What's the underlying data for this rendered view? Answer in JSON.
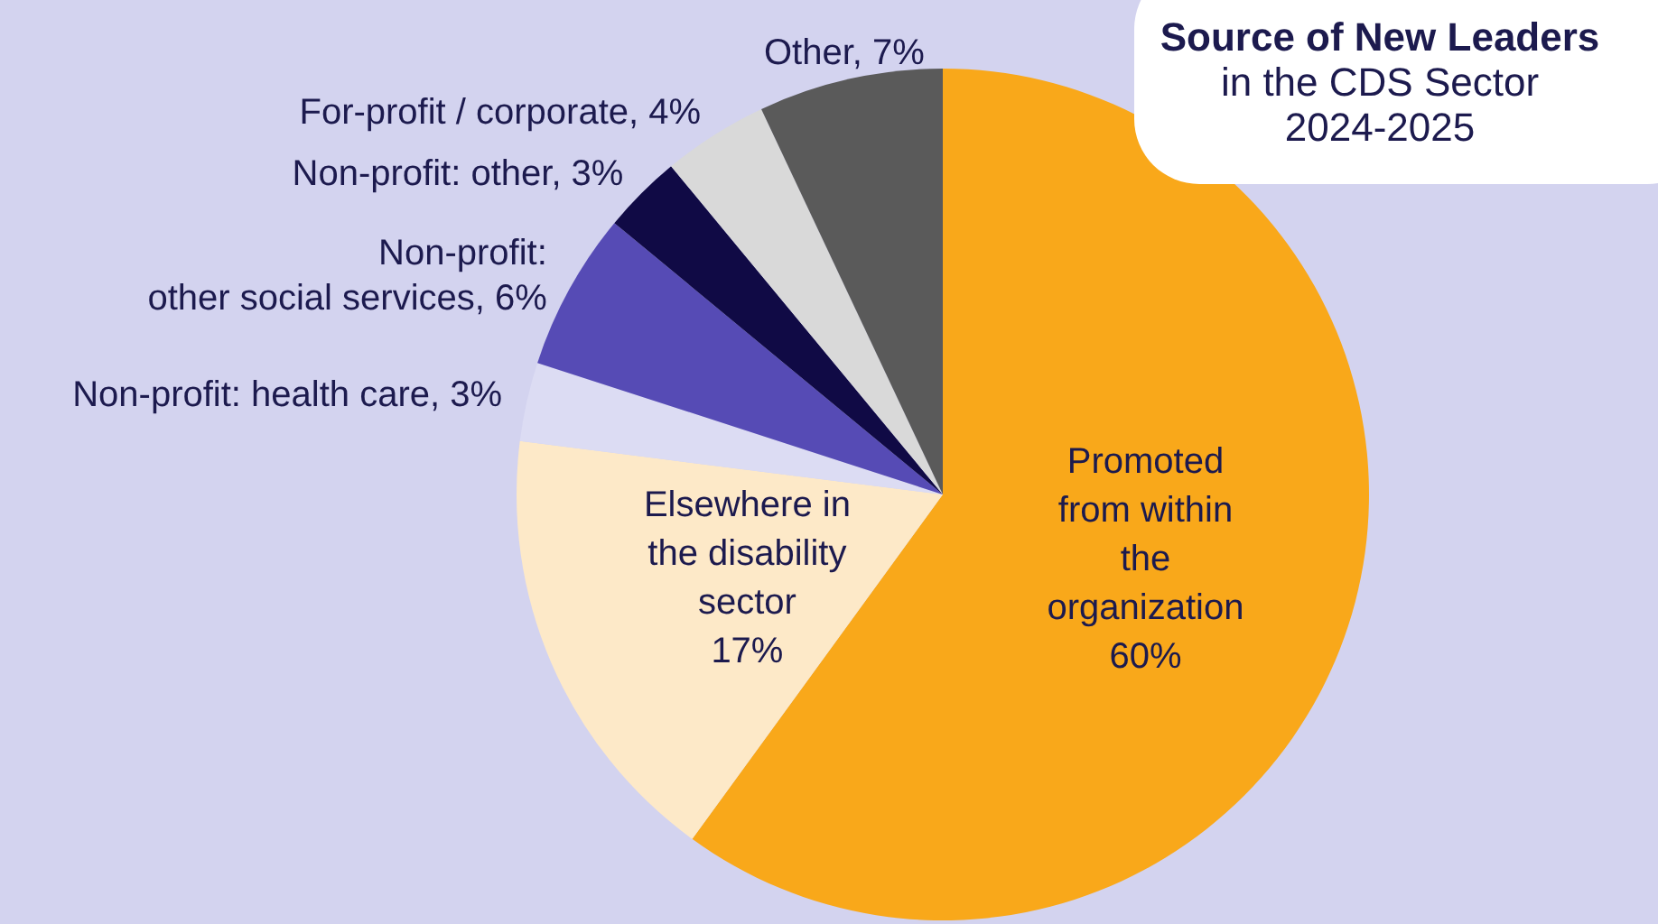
{
  "chart_data": {
    "type": "pie",
    "title": "Source of New Leaders",
    "subtitle": "in the CDS Sector 2024-2025",
    "categories": [
      "Promoted from within the organization",
      "Elsewhere in the disability sector",
      "Non-profit: health care",
      "Non-profit: other social services",
      "Non-profit: other",
      "For-profit / corporate",
      "Other"
    ],
    "values": [
      60,
      17,
      3,
      6,
      3,
      4,
      7
    ],
    "colors": [
      "#f9a81a",
      "#fde9c8",
      "#dcdcf3",
      "#564bb5",
      "#100a45",
      "#d9d9d9",
      "#5a5a5a"
    ],
    "value_labels": [
      "60%",
      "17%",
      "3%",
      "6%",
      "3%",
      "4%",
      "7%"
    ],
    "legend": false
  }
}
